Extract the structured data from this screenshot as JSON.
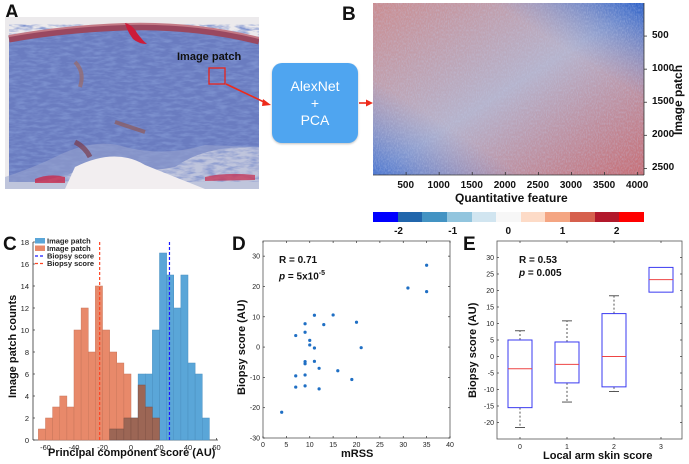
{
  "panels": {
    "a": {
      "label": "A",
      "patch_label": "Image patch"
    },
    "pipeline": {
      "line1": "AlexNet",
      "line2": "+",
      "line3": "PCA"
    },
    "b": {
      "label": "B"
    },
    "c": {
      "label": "C"
    },
    "d": {
      "label": "D"
    },
    "e": {
      "label": "E"
    }
  },
  "colors": {
    "tissue_blue": "#4a5fa8",
    "stain_red": "#c8283e",
    "pipeline_box": "#4fa5f0",
    "arrow": "#ee2a1a",
    "hist_blue": "#5aa6d8",
    "hist_orange": "#e8896a",
    "hist_overlap": "#9c6655",
    "scatter": "#1f6fc4",
    "box_edge": "#3a3af0",
    "median": "#ee4444"
  },
  "chart_data": [
    {
      "id": "B",
      "type": "heatmap",
      "xlabel": "Quantitative feature",
      "ylabel": "Image patch",
      "x_ticks": [
        500,
        1000,
        1500,
        2000,
        2500,
        3000,
        3500,
        4000
      ],
      "y_ticks": [
        500,
        1000,
        1500,
        2000,
        2500
      ],
      "xlim": [
        0,
        4096
      ],
      "ylim": [
        0,
        2600
      ],
      "pattern": "red in top-left and bottom-right corners, blue in top-right and bottom-left corners, mixed noise in center",
      "colorbar": {
        "ticks": [
          -2,
          -1,
          0,
          1,
          2
        ],
        "range": [
          -2.5,
          2.5
        ],
        "colors": [
          "#0000ff",
          "#2166ac",
          "#4393c3",
          "#92c5de",
          "#d1e5f0",
          "#f7f7f7",
          "#fddbc7",
          "#f4a582",
          "#d6604d",
          "#b2182b",
          "#ff0000"
        ]
      }
    },
    {
      "id": "C",
      "type": "bar",
      "subtype": "histogram",
      "xlabel": "Principal component score (AU)",
      "ylabel": "Image patch counts",
      "xlim": [
        -70,
        60
      ],
      "ylim": [
        0,
        18
      ],
      "x_ticks": [
        -60,
        -40,
        -20,
        0,
        20,
        40,
        60
      ],
      "y_ticks": [
        0,
        2,
        4,
        6,
        8,
        10,
        12,
        14,
        16,
        18
      ],
      "bin_width": 5,
      "legend": [
        "Image patch",
        "Image patch",
        "Biopsy score",
        "Biopsy score"
      ],
      "legend_position": "top-left",
      "series": [
        {
          "name": "Image patch",
          "color_key": "hist_blue",
          "bin_starts": [
            -15,
            -10,
            -5,
            0,
            5,
            10,
            15,
            20,
            25,
            30,
            35,
            40,
            45,
            50
          ],
          "counts": [
            1,
            1,
            2,
            2,
            6,
            6,
            10,
            17,
            15,
            12,
            15,
            7,
            6,
            2
          ]
        },
        {
          "name": "Image patch",
          "color_key": "hist_orange",
          "bin_starts": [
            -65,
            -60,
            -55,
            -50,
            -45,
            -40,
            -35,
            -30,
            -25,
            -20,
            -15,
            -10,
            -5,
            0,
            5,
            10,
            15
          ],
          "counts": [
            1,
            2,
            3,
            4,
            3,
            10,
            12,
            8,
            14,
            10,
            8,
            7,
            6,
            2,
            5,
            3,
            2
          ]
        }
      ],
      "vlines": [
        {
          "name": "Biopsy score",
          "x": 27,
          "color": "#1a1aff"
        },
        {
          "name": "Biopsy score",
          "x": -22,
          "color": "#ff4422"
        }
      ]
    },
    {
      "id": "D",
      "type": "scatter",
      "xlabel": "mRSS",
      "ylabel": "Biopsy score (AU)",
      "xlim": [
        0,
        40
      ],
      "ylim": [
        -30,
        35
      ],
      "x_ticks": [
        0,
        5,
        10,
        15,
        20,
        25,
        30,
        35,
        40
      ],
      "y_ticks": [
        -30,
        -20,
        -10,
        0,
        10,
        20,
        30
      ],
      "annotation": {
        "r": "R = 0.71",
        "p_prefix": "p",
        "p_value": " = 5x10",
        "p_exp": "-5"
      },
      "points": [
        [
          4,
          -21.5
        ],
        [
          7,
          3.8
        ],
        [
          7,
          -9.5
        ],
        [
          7,
          -13.2
        ],
        [
          9,
          7.7
        ],
        [
          9,
          4.9
        ],
        [
          9,
          -4.8
        ],
        [
          9,
          -5.5
        ],
        [
          9,
          -9.2
        ],
        [
          9,
          -12.8
        ],
        [
          10,
          2.2
        ],
        [
          10,
          0.7
        ],
        [
          11,
          10.5
        ],
        [
          11,
          -0.3
        ],
        [
          11,
          -4.7
        ],
        [
          12,
          -7.0
        ],
        [
          12,
          -13.8
        ],
        [
          13,
          7.4
        ],
        [
          15,
          10.6
        ],
        [
          16,
          -7.8
        ],
        [
          19,
          -10.7
        ],
        [
          20,
          8.2
        ],
        [
          21,
          -0.2
        ],
        [
          31,
          19.5
        ],
        [
          35,
          27.0
        ],
        [
          35,
          18.3
        ]
      ]
    },
    {
      "id": "E",
      "type": "box",
      "xlabel": "Local arm skin score",
      "ylabel": "Biopsy score (AU)",
      "categories": [
        "0",
        "1",
        "2",
        "3"
      ],
      "ylim": [
        -25,
        35
      ],
      "y_ticks": [
        -20,
        -15,
        -10,
        -5,
        0,
        5,
        10,
        15,
        20,
        25,
        30
      ],
      "annotation": {
        "r": "R = 0.53",
        "p_prefix": "p",
        "p_value": " = 0.005"
      },
      "boxes": [
        {
          "min": -21.5,
          "q1": -15.5,
          "median": -3.7,
          "q3": 5.0,
          "max": 7.8
        },
        {
          "min": -13.8,
          "q1": -8.0,
          "median": -2.4,
          "q3": 4.4,
          "max": 10.8
        },
        {
          "min": -10.6,
          "q1": -9.2,
          "median": 0.0,
          "q3": 13.0,
          "max": 18.4
        },
        {
          "min": 19.5,
          "q1": 19.5,
          "median": 23.3,
          "q3": 27.0,
          "max": 27.0
        }
      ]
    }
  ]
}
